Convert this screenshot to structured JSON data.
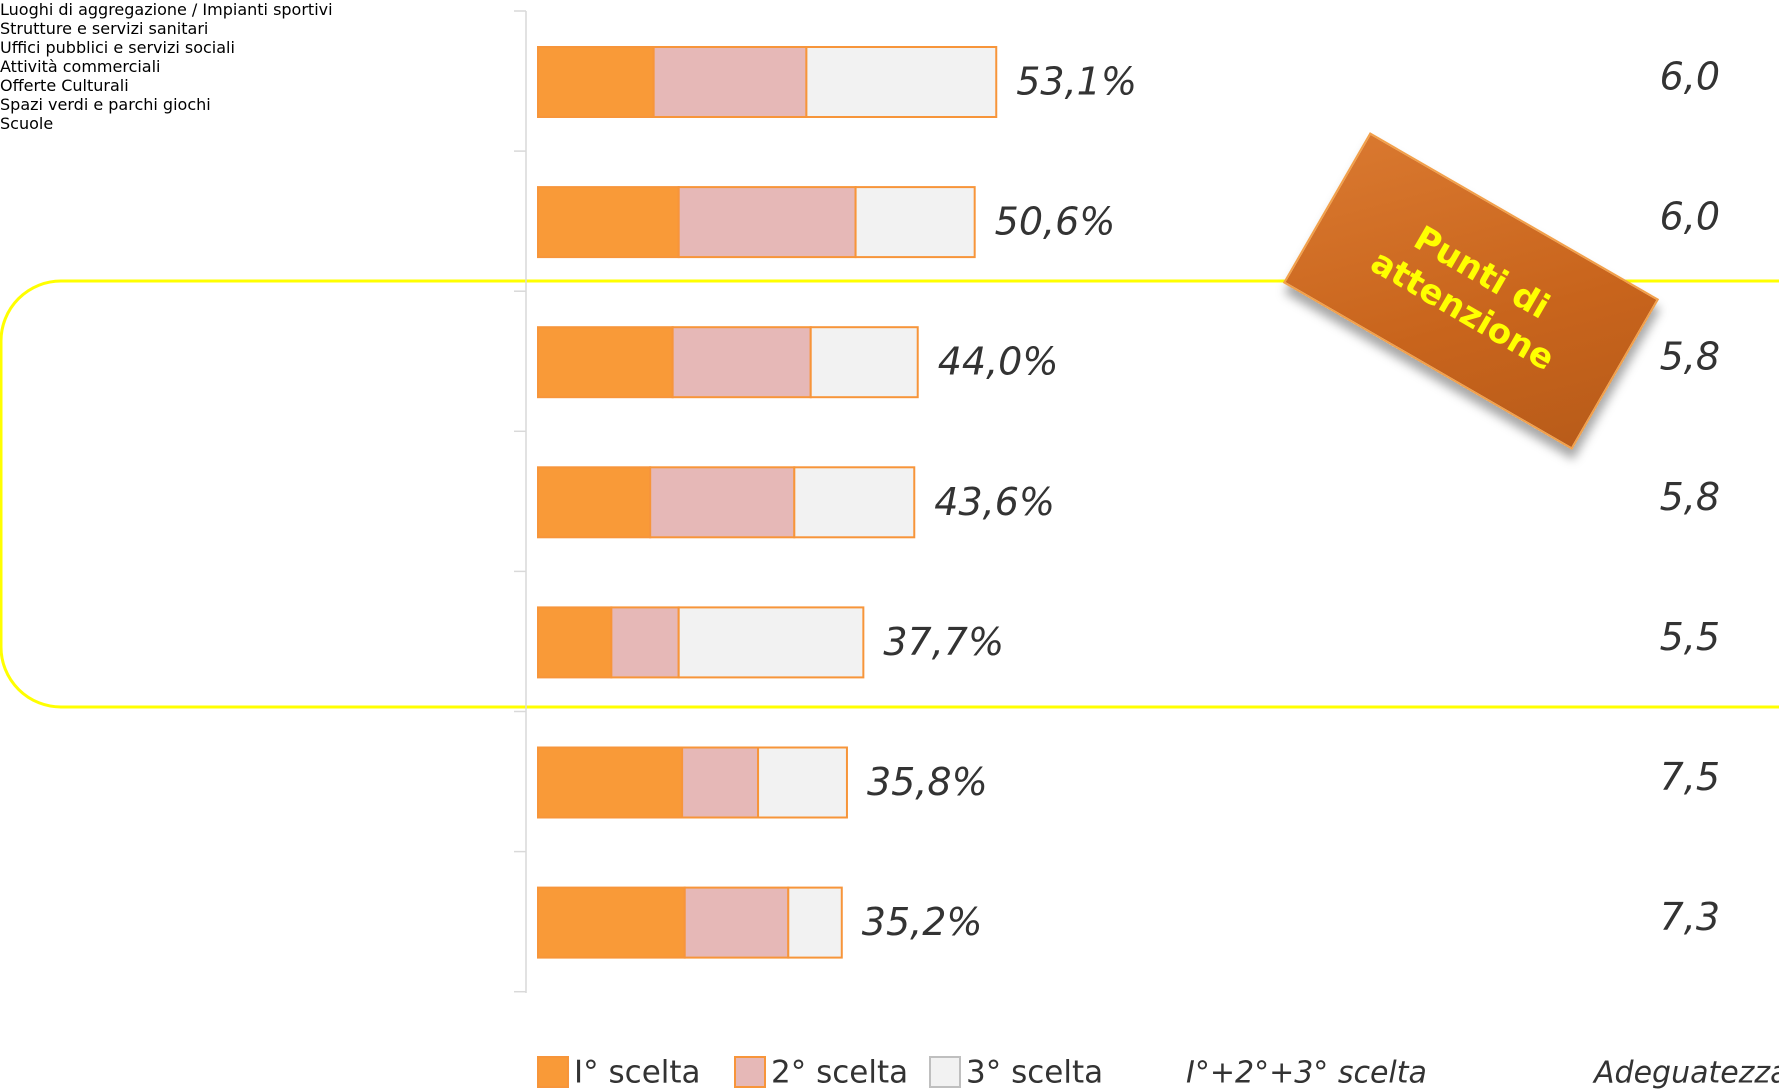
{
  "chart_data": {
    "type": "stacked-barh",
    "categories": [
      "Luoghi di aggregazione / Impianti sportivi",
      "Strutture e servizi sanitari",
      "Uffici pubblici e servizi sociali",
      "Attività commerciali",
      "Offerte Culturali",
      "Spazi verdi e parchi giochi",
      "Scuole"
    ],
    "series": [
      {
        "name": "I° scelta",
        "color": "#f99a38",
        "values": [
          13.4,
          16.3,
          15.6,
          13.0,
          8.5,
          16.7,
          17.0
        ]
      },
      {
        "name": "2° scelta",
        "color": "#e6b8b7",
        "values": [
          17.7,
          20.5,
          16.0,
          16.7,
          7.8,
          8.8,
          12.0
        ]
      },
      {
        "name": "3° scelta",
        "color": "#f2f2f2",
        "values": [
          22.0,
          13.8,
          12.4,
          13.9,
          21.4,
          10.3,
          6.2
        ]
      }
    ],
    "totals_name": "I°+2°+3° scelta",
    "totals": [
      53.1,
      50.6,
      44.0,
      43.6,
      37.7,
      35.8,
      35.2
    ],
    "totals_labels": [
      "53,1%",
      "50,6%",
      "44,0%",
      "43,6%",
      "37,7%",
      "35,8%",
      "35,2%"
    ],
    "adequacy_name": "Adeguatezza",
    "adequacy": [
      6.0,
      6.0,
      5.8,
      5.8,
      5.5,
      7.5,
      7.3
    ],
    "adequacy_labels": [
      "6,0",
      "6,0",
      "5,8",
      "5,8",
      "5,5",
      "7,5",
      "7,3"
    ],
    "annotation": "Punti di attenzione",
    "xlim": [
      0,
      100
    ],
    "outline_color": "#f7953a",
    "highlight_color": "#ffff00"
  }
}
